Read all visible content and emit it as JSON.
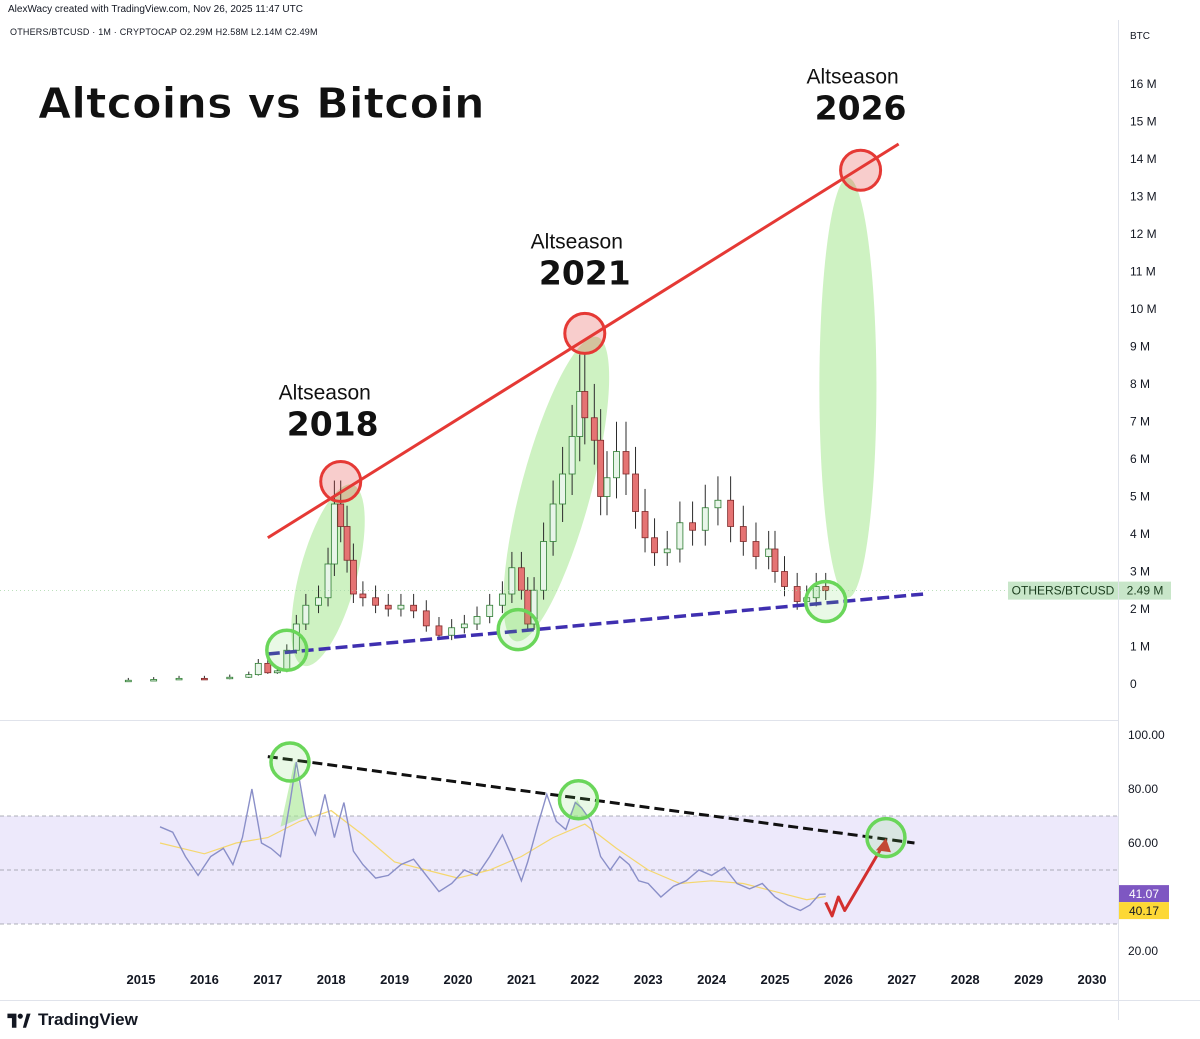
{
  "header": {
    "credit": "AlexWacy created with TradingView.com, Nov 26, 2025 11:47 UTC",
    "symbol_line": "OTHERS/BTCUSD · 1M · CRYPTOCAP  O2.29M  H2.58M  L2.14M  C2.49M"
  },
  "footer": {
    "brand": "TradingView"
  },
  "colors": {
    "up_candle": "#e8f5e9",
    "candle_outline": "#2e7d32",
    "down_candle": "#e57373",
    "resistance_line": "#e53935",
    "support_line": "#3f2fb0",
    "highlight_ellipse": "#a5e88f",
    "green_circle": "#6ad65a",
    "red_circle": "#e53935",
    "rsi_line": "#8a8fc8",
    "rsi_ma": "#f5d76e",
    "rsi_band": "#ede9fb",
    "badge_bg": "#c8e6c9",
    "rsi_badge": "#7e57c2",
    "ma_badge": "#fdd835"
  },
  "chart_data": [
    {
      "type": "candlestick",
      "title": "Altcoins vs Bitcoin",
      "series_name": "OTHERS/BTCUSD",
      "y_unit": "BTC",
      "ylim": [
        0,
        17
      ],
      "y_ticks": [
        "0",
        "1 M",
        "2 M",
        "3 M",
        "4 M",
        "5 M",
        "6 M",
        "7 M",
        "8 M",
        "9 M",
        "10 M",
        "11 M",
        "12 M",
        "13 M",
        "14 M",
        "15 M",
        "16 M"
      ],
      "x_ticks": [
        "2015",
        "2016",
        "2017",
        "2018",
        "2019",
        "2020",
        "2021",
        "2022",
        "2023",
        "2024",
        "2025",
        "2026",
        "2027",
        "2028",
        "2029",
        "2030"
      ],
      "xlim": [
        2014.5,
        2030.5
      ],
      "last_value_label": "2.49 M",
      "last_value": 2.49,
      "close_path": [
        [
          2014.8,
          0.1
        ],
        [
          2015.2,
          0.12
        ],
        [
          2015.6,
          0.15
        ],
        [
          2016.0,
          0.14
        ],
        [
          2016.4,
          0.18
        ],
        [
          2016.7,
          0.25
        ],
        [
          2016.85,
          0.55
        ],
        [
          2017.0,
          0.3
        ],
        [
          2017.15,
          0.35
        ],
        [
          2017.3,
          0.9
        ],
        [
          2017.45,
          1.6
        ],
        [
          2017.6,
          2.1
        ],
        [
          2017.8,
          2.3
        ],
        [
          2017.95,
          3.2
        ],
        [
          2018.05,
          4.8
        ],
        [
          2018.15,
          4.2
        ],
        [
          2018.25,
          3.3
        ],
        [
          2018.35,
          2.4
        ],
        [
          2018.5,
          2.3
        ],
        [
          2018.7,
          2.1
        ],
        [
          2018.9,
          2.0
        ],
        [
          2019.1,
          2.1
        ],
        [
          2019.3,
          1.95
        ],
        [
          2019.5,
          1.55
        ],
        [
          2019.7,
          1.3
        ],
        [
          2019.9,
          1.5
        ],
        [
          2020.1,
          1.6
        ],
        [
          2020.3,
          1.8
        ],
        [
          2020.5,
          2.1
        ],
        [
          2020.7,
          2.4
        ],
        [
          2020.85,
          3.1
        ],
        [
          2021.0,
          2.5
        ],
        [
          2021.1,
          1.6
        ],
        [
          2021.2,
          2.5
        ],
        [
          2021.35,
          3.8
        ],
        [
          2021.5,
          4.8
        ],
        [
          2021.65,
          5.6
        ],
        [
          2021.8,
          6.6
        ],
        [
          2021.92,
          7.8
        ],
        [
          2022.0,
          7.1
        ],
        [
          2022.15,
          6.5
        ],
        [
          2022.25,
          5.0
        ],
        [
          2022.35,
          5.5
        ],
        [
          2022.5,
          6.2
        ],
        [
          2022.65,
          5.6
        ],
        [
          2022.8,
          4.6
        ],
        [
          2022.95,
          3.9
        ],
        [
          2023.1,
          3.5
        ],
        [
          2023.3,
          3.6
        ],
        [
          2023.5,
          4.3
        ],
        [
          2023.7,
          4.1
        ],
        [
          2023.9,
          4.7
        ],
        [
          2024.1,
          4.9
        ],
        [
          2024.3,
          4.2
        ],
        [
          2024.5,
          3.8
        ],
        [
          2024.7,
          3.4
        ],
        [
          2024.9,
          3.6
        ],
        [
          2025.0,
          3.0
        ],
        [
          2025.15,
          2.6
        ],
        [
          2025.35,
          2.2
        ],
        [
          2025.5,
          2.3
        ],
        [
          2025.65,
          2.6
        ],
        [
          2025.8,
          2.49
        ]
      ],
      "resistance_line": [
        [
          2017.0,
          3.9
        ],
        [
          2026.95,
          14.4
        ]
      ],
      "support_line": [
        [
          2017.0,
          0.8
        ],
        [
          2027.35,
          2.4
        ]
      ],
      "annotations": [
        {
          "label": "Altseason",
          "year_label": "2018",
          "x": 2018.15,
          "y": 5.4
        },
        {
          "label": "Altseason",
          "year_label": "2021",
          "x": 2022.0,
          "y": 9.35
        },
        {
          "label": "Altseason",
          "year_label": "2026",
          "x": 2026.35,
          "y": 13.7
        }
      ],
      "highlight_ellipses": [
        {
          "x": 2017.95,
          "y": 2.9,
          "rx": 0.45,
          "ry": 2.5,
          "angle": 15
        },
        {
          "x": 2021.55,
          "y": 5.2,
          "rx": 0.55,
          "ry": 4.2,
          "angle": 15
        },
        {
          "x": 2026.15,
          "y": 7.9,
          "rx": 0.45,
          "ry": 5.6,
          "angle": 0
        }
      ],
      "green_circles": [
        [
          2017.3,
          0.9
        ],
        [
          2020.95,
          1.45
        ],
        [
          2025.8,
          2.2
        ]
      ],
      "red_circles": [
        [
          2018.15,
          5.4
        ],
        [
          2022.0,
          9.35
        ],
        [
          2026.35,
          13.7
        ]
      ]
    },
    {
      "type": "line",
      "series_name": "RSI",
      "ylim": [
        10,
        105
      ],
      "y_ticks": [
        "100.00",
        "80.00",
        "60.00",
        "20.00"
      ],
      "band": [
        30,
        70
      ],
      "midline": 50,
      "rsi_label": "41.07",
      "ma_label": "40.17",
      "rsi_value": 41.07,
      "ma_value": 40.17,
      "rsi": [
        [
          2015.3,
          66
        ],
        [
          2015.5,
          64
        ],
        [
          2015.7,
          55
        ],
        [
          2015.9,
          48
        ],
        [
          2016.1,
          55
        ],
        [
          2016.3,
          58
        ],
        [
          2016.45,
          52
        ],
        [
          2016.6,
          62
        ],
        [
          2016.75,
          80
        ],
        [
          2016.9,
          60
        ],
        [
          2017.05,
          58
        ],
        [
          2017.2,
          55
        ],
        [
          2017.35,
          75
        ],
        [
          2017.45,
          90
        ],
        [
          2017.6,
          70
        ],
        [
          2017.75,
          63
        ],
        [
          2017.9,
          78
        ],
        [
          2018.05,
          62
        ],
        [
          2018.2,
          75
        ],
        [
          2018.35,
          57
        ],
        [
          2018.5,
          52
        ],
        [
          2018.7,
          47
        ],
        [
          2018.9,
          48
        ],
        [
          2019.1,
          52
        ],
        [
          2019.3,
          54
        ],
        [
          2019.5,
          48
        ],
        [
          2019.7,
          42
        ],
        [
          2019.9,
          45
        ],
        [
          2020.1,
          50
        ],
        [
          2020.3,
          48
        ],
        [
          2020.5,
          55
        ],
        [
          2020.7,
          63
        ],
        [
          2020.85,
          55
        ],
        [
          2021.0,
          46
        ],
        [
          2021.1,
          53
        ],
        [
          2021.25,
          66
        ],
        [
          2021.4,
          78
        ],
        [
          2021.55,
          68
        ],
        [
          2021.7,
          65
        ],
        [
          2021.85,
          75
        ],
        [
          2021.95,
          73
        ],
        [
          2022.1,
          68
        ],
        [
          2022.25,
          55
        ],
        [
          2022.4,
          50
        ],
        [
          2022.55,
          55
        ],
        [
          2022.7,
          52
        ],
        [
          2022.85,
          46
        ],
        [
          2023.0,
          45
        ],
        [
          2023.2,
          40
        ],
        [
          2023.4,
          44
        ],
        [
          2023.6,
          46
        ],
        [
          2023.8,
          50
        ],
        [
          2024.0,
          48
        ],
        [
          2024.2,
          51
        ],
        [
          2024.4,
          45
        ],
        [
          2024.6,
          43
        ],
        [
          2024.8,
          45
        ],
        [
          2025.0,
          40
        ],
        [
          2025.2,
          37
        ],
        [
          2025.4,
          35
        ],
        [
          2025.55,
          37
        ],
        [
          2025.7,
          41
        ],
        [
          2025.8,
          41.07
        ]
      ],
      "rsi_ma": [
        [
          2015.3,
          60
        ],
        [
          2016.0,
          56
        ],
        [
          2016.5,
          60
        ],
        [
          2017.0,
          62
        ],
        [
          2017.5,
          68
        ],
        [
          2018.0,
          72
        ],
        [
          2018.5,
          63
        ],
        [
          2019.0,
          53
        ],
        [
          2019.5,
          50
        ],
        [
          2020.0,
          47
        ],
        [
          2020.5,
          50
        ],
        [
          2021.0,
          55
        ],
        [
          2021.5,
          62
        ],
        [
          2022.0,
          67
        ],
        [
          2022.5,
          58
        ],
        [
          2023.0,
          50
        ],
        [
          2023.5,
          45
        ],
        [
          2024.0,
          46
        ],
        [
          2024.5,
          45
        ],
        [
          2025.0,
          42
        ],
        [
          2025.5,
          39
        ],
        [
          2025.8,
          40.17
        ]
      ],
      "trend_line": [
        [
          2017.0,
          92
        ],
        [
          2027.2,
          60
        ]
      ],
      "green_circles": [
        [
          2017.35,
          90
        ],
        [
          2021.9,
          76
        ],
        [
          2026.75,
          62
        ]
      ],
      "projection_arrow": [
        [
          2025.8,
          38
        ],
        [
          2025.9,
          33
        ],
        [
          2026.0,
          40
        ],
        [
          2026.1,
          35
        ],
        [
          2026.35,
          45
        ],
        [
          2026.75,
          61
        ]
      ]
    }
  ]
}
